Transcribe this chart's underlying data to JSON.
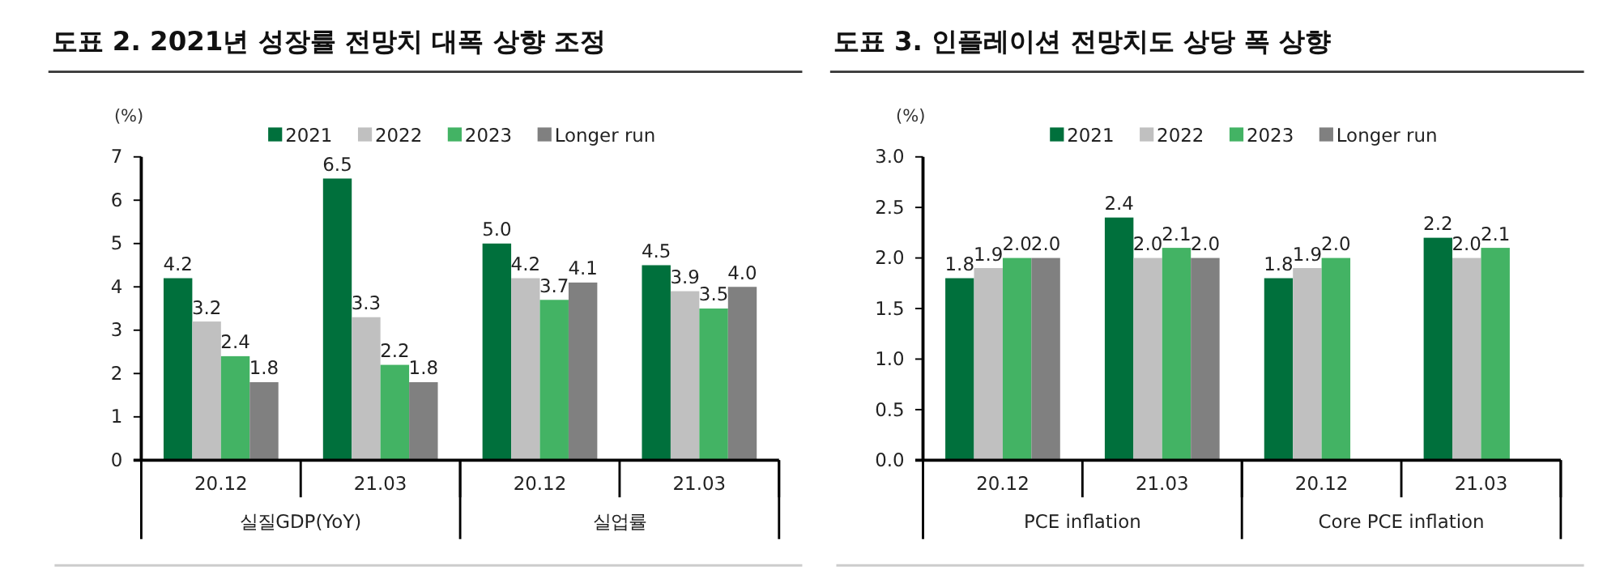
{
  "chart_data": [
    {
      "type": "bar",
      "title": "도표 2. 2021년 성장률 전망치 대폭 상향 조정",
      "ylabel": "(%)",
      "categories": [
        "20.12",
        "21.03",
        "20.12",
        "21.03"
      ],
      "annotations": [
        "실질GDP(YoY)",
        "실업률"
      ],
      "ylim": [
        0,
        7
      ],
      "yticks": [
        0,
        1,
        2,
        3,
        4,
        5,
        6,
        7
      ],
      "legend": "top",
      "series": [
        {
          "name": "2021",
          "color": "#00703c",
          "values": [
            4.2,
            6.5,
            5.0,
            4.5
          ],
          "value_labels": [
            "4.2",
            "6.5",
            "5.0",
            "4.5"
          ]
        },
        {
          "name": "2022",
          "color": "#c0c0c0",
          "values": [
            3.2,
            3.3,
            4.2,
            3.9
          ],
          "value_labels": [
            "3.2",
            "3.3",
            "4.2",
            "3.9"
          ]
        },
        {
          "name": "2023",
          "color": "#43b364",
          "values": [
            2.4,
            2.2,
            3.7,
            3.5
          ],
          "value_labels": [
            "2.4",
            "2.2",
            "3.7",
            "3.5"
          ]
        },
        {
          "name": "Longer run",
          "color": "#808080",
          "values": [
            1.8,
            1.8,
            4.1,
            4.0
          ],
          "value_labels": [
            "1.8",
            "1.8",
            "4.1",
            "4.0"
          ]
        }
      ]
    },
    {
      "type": "bar",
      "title": "도표 3. 인플레이션 전망치도 상당 폭 상향",
      "ylabel": "(%)",
      "categories": [
        "20.12",
        "21.03",
        "20.12",
        "21.03"
      ],
      "annotations": [
        "PCE inflation",
        "Core PCE inflation"
      ],
      "ylim": [
        0,
        3
      ],
      "yticks": [
        {
          "value": 0,
          "label": "0.0"
        },
        {
          "value": 0.5,
          "label": "0.5"
        },
        {
          "value": 1,
          "label": "1.0"
        },
        {
          "value": 1.5,
          "label": "1.5"
        },
        {
          "value": 2,
          "label": "2.0"
        },
        {
          "value": 2.5,
          "label": "2.5"
        },
        {
          "value": 3,
          "label": "3.0"
        }
      ],
      "legend": "top",
      "series": [
        {
          "name": "2021",
          "color": "#00703c",
          "values": [
            1.8,
            2.4,
            1.8,
            2.2
          ],
          "value_labels": [
            "1.8",
            "2.4",
            "1.8",
            "2.2"
          ]
        },
        {
          "name": "2022",
          "color": "#c0c0c0",
          "values": [
            1.9,
            2.0,
            1.9,
            2.0
          ],
          "value_labels": [
            "1.9",
            "2.0",
            "1.9",
            "2.0"
          ]
        },
        {
          "name": "2023",
          "color": "#43b364",
          "values": [
            2.0,
            2.1,
            2.0,
            2.1
          ],
          "value_labels": [
            "2.0",
            "2.1",
            "2.0",
            "2.1"
          ]
        },
        {
          "name": "Longer run",
          "color": "#808080",
          "values": [
            2.0,
            2.0,
            null,
            null
          ],
          "value_labels": [
            "2.0",
            "2.0",
            null,
            null
          ]
        }
      ]
    }
  ]
}
